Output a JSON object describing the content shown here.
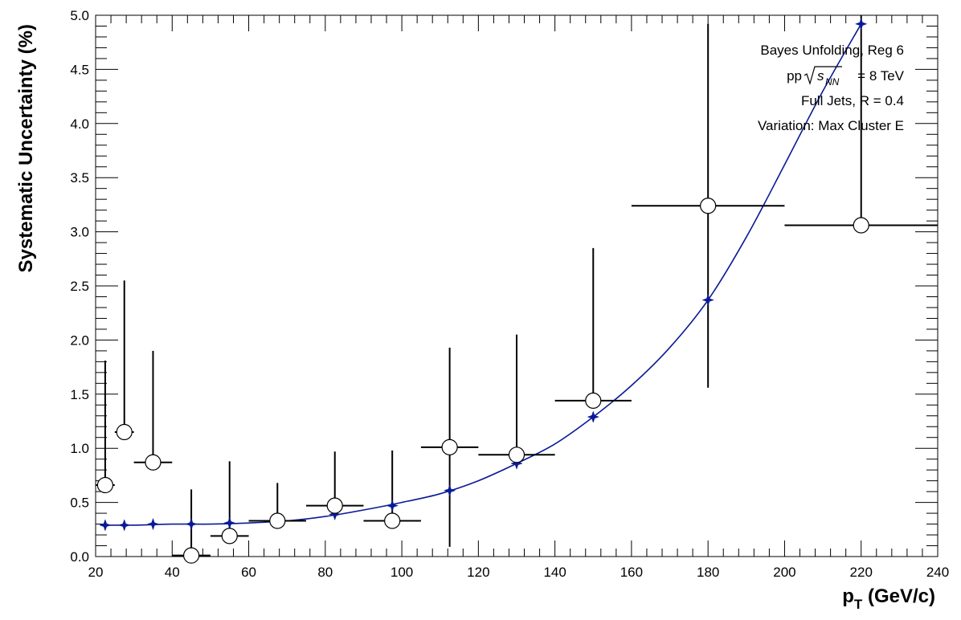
{
  "chart_data": {
    "type": "scatter",
    "xlabel": "p",
    "xlabel_sub": "T",
    "xlabel_suffix": " (GeV/c)",
    "ylabel": "Systematic Uncertainty (%)",
    "xlim": [
      20,
      240
    ],
    "ylim": [
      0,
      5
    ],
    "x_ticks": [
      "20",
      "40",
      "60",
      "80",
      "100",
      "120",
      "140",
      "160",
      "180",
      "200",
      "220",
      "240"
    ],
    "y_ticks": [
      "0.0",
      "0.5",
      "1.0",
      "1.5",
      "2.0",
      "2.5",
      "3.0",
      "3.5",
      "4.0",
      "4.5",
      "5.0"
    ],
    "annotations": {
      "line1": "Bayes Unfolding, Reg 6",
      "line2_prefix": "pp ",
      "line2_s": "s",
      "line2_sub": "NN",
      "line2_suffix": " = 8 TeV",
      "line3": "Full Jets, R = 0.4",
      "line4": "Variation: Max Cluster E"
    },
    "series": [
      {
        "marker": "open-circle",
        "color": "#000000",
        "points": [
          {
            "x": 22.5,
            "xlow": 20,
            "xhigh": 25,
            "y": 0.66,
            "ylow": 0.66,
            "yhigh": 1.81
          },
          {
            "x": 27.5,
            "xlow": 25,
            "xhigh": 30,
            "y": 1.15,
            "ylow": 1.15,
            "yhigh": 2.55
          },
          {
            "x": 35,
            "xlow": 30,
            "xhigh": 40,
            "y": 0.87,
            "ylow": 0.87,
            "yhigh": 1.9
          },
          {
            "x": 45,
            "xlow": 40,
            "xhigh": 50,
            "y": 0.01,
            "ylow": 0.01,
            "yhigh": 0.62
          },
          {
            "x": 55,
            "xlow": 50,
            "xhigh": 60,
            "y": 0.19,
            "ylow": 0.19,
            "yhigh": 0.88
          },
          {
            "x": 67.5,
            "xlow": 60,
            "xhigh": 75,
            "y": 0.33,
            "ylow": 0.33,
            "yhigh": 0.68
          },
          {
            "x": 82.5,
            "xlow": 75,
            "xhigh": 90,
            "y": 0.47,
            "ylow": 0.47,
            "yhigh": 0.97
          },
          {
            "x": 97.5,
            "xlow": 90,
            "xhigh": 105,
            "y": 0.33,
            "ylow": 0.33,
            "yhigh": 0.98
          },
          {
            "x": 112.5,
            "xlow": 105,
            "xhigh": 120,
            "y": 1.01,
            "ylow": 0.09,
            "yhigh": 1.93
          },
          {
            "x": 130,
            "xlow": 120,
            "xhigh": 140,
            "y": 0.94,
            "ylow": 0.94,
            "yhigh": 2.05
          },
          {
            "x": 150,
            "xlow": 140,
            "xhigh": 160,
            "y": 1.44,
            "ylow": 1.44,
            "yhigh": 2.85
          },
          {
            "x": 180,
            "xlow": 160,
            "xhigh": 200,
            "y": 3.24,
            "ylow": 1.56,
            "yhigh": 4.92
          },
          {
            "x": 220,
            "xlow": 200,
            "xhigh": 240,
            "y": 3.06,
            "ylow": 3.06,
            "yhigh": 5.0
          }
        ]
      },
      {
        "marker": "filled-star",
        "color": "#0a1a96",
        "points": [
          {
            "x": 22.5,
            "y": 0.29
          },
          {
            "x": 27.5,
            "y": 0.29
          },
          {
            "x": 35,
            "y": 0.3
          },
          {
            "x": 45,
            "y": 0.3
          },
          {
            "x": 55,
            "y": 0.31
          },
          {
            "x": 67.5,
            "y": 0.33
          },
          {
            "x": 82.5,
            "y": 0.39
          },
          {
            "x": 97.5,
            "y": 0.47
          },
          {
            "x": 112.5,
            "y": 0.61
          },
          {
            "x": 130,
            "y": 0.86
          },
          {
            "x": 150,
            "y": 1.29
          },
          {
            "x": 180,
            "y": 2.37
          },
          {
            "x": 220,
            "y": 4.92
          }
        ]
      },
      {
        "type": "line",
        "style": "fit-curve",
        "color": "#0a1a96",
        "x": [
          22,
          30,
          40,
          50,
          60,
          70,
          80,
          90,
          100,
          110,
          120,
          130,
          140,
          150,
          160,
          170,
          180,
          190,
          200,
          210,
          220
        ],
        "y": [
          0.29,
          0.29,
          0.3,
          0.3,
          0.31,
          0.33,
          0.37,
          0.43,
          0.5,
          0.58,
          0.7,
          0.86,
          1.04,
          1.29,
          1.58,
          1.93,
          2.37,
          2.95,
          3.62,
          4.3,
          4.92
        ]
      }
    ]
  }
}
